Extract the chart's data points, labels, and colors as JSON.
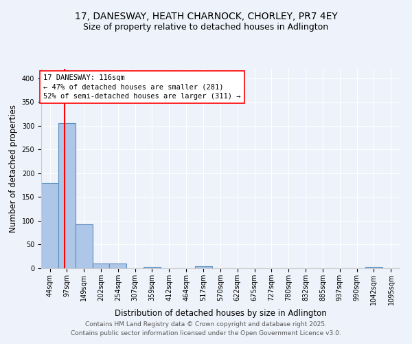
{
  "title1": "17, DANESWAY, HEATH CHARNOCK, CHORLEY, PR7 4EY",
  "title2": "Size of property relative to detached houses in Adlington",
  "xlabel": "Distribution of detached houses by size in Adlington",
  "ylabel": "Number of detached properties",
  "bin_labels": [
    "44sqm",
    "97sqm",
    "149sqm",
    "202sqm",
    "254sqm",
    "307sqm",
    "359sqm",
    "412sqm",
    "464sqm",
    "517sqm",
    "570sqm",
    "622sqm",
    "675sqm",
    "727sqm",
    "780sqm",
    "832sqm",
    "885sqm",
    "937sqm",
    "990sqm",
    "1042sqm",
    "1095sqm"
  ],
  "bin_edges": [
    44,
    97,
    149,
    202,
    254,
    307,
    359,
    412,
    464,
    517,
    570,
    622,
    675,
    727,
    780,
    832,
    885,
    937,
    990,
    1042,
    1095,
    1148
  ],
  "bar_heights": [
    180,
    305,
    93,
    10,
    10,
    0,
    3,
    0,
    0,
    4,
    0,
    0,
    0,
    0,
    0,
    0,
    0,
    0,
    0,
    3,
    0
  ],
  "bar_color": "#aec6e8",
  "bar_edgecolor": "#5a8fc0",
  "bar_linewidth": 0.8,
  "vline_x": 116,
  "vline_color": "red",
  "vline_linewidth": 1.5,
  "annotation_text": "17 DANESWAY: 116sqm\n← 47% of detached houses are smaller (281)\n52% of semi-detached houses are larger (311) →",
  "annotation_box_color": "white",
  "annotation_box_edgecolor": "red",
  "annotation_fontsize": 7.5,
  "ylim": [
    0,
    420
  ],
  "yticks": [
    0,
    50,
    100,
    150,
    200,
    250,
    300,
    350,
    400
  ],
  "background_color": "#eef2fa",
  "footer1": "Contains HM Land Registry data © Crown copyright and database right 2025.",
  "footer2": "Contains public sector information licensed under the Open Government Licence v3.0.",
  "title_fontsize": 10,
  "subtitle_fontsize": 9,
  "axis_fontsize": 8.5,
  "tick_fontsize": 7,
  "footer_fontsize": 6.5
}
